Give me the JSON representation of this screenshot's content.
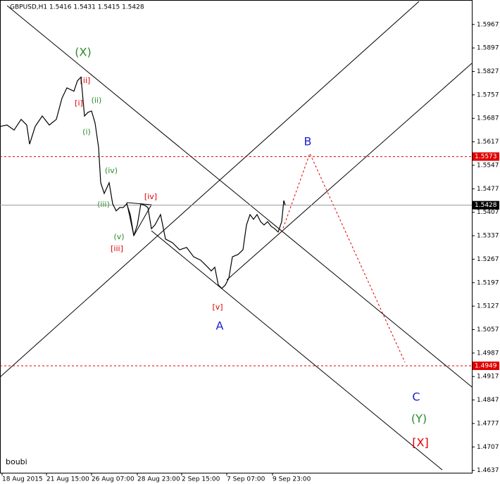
{
  "chart_data": {
    "type": "line",
    "title": "GBPUSD,H1  1.5416 1.5431 1.5415 1.5428",
    "footer": "boubi",
    "x": [
      0,
      10,
      20,
      30,
      38,
      42,
      50,
      60,
      70,
      80,
      88,
      95,
      105,
      110,
      115,
      120,
      125,
      130,
      135,
      140,
      143,
      148,
      155,
      160,
      165,
      170,
      175,
      180,
      185,
      190,
      195,
      200,
      205,
      210,
      215,
      220,
      228,
      235,
      245,
      255,
      265,
      275,
      285,
      295,
      300,
      305,
      310,
      315,
      320,
      325,
      330,
      338,
      345,
      350,
      355,
      360,
      365,
      370,
      375,
      380,
      385,
      390,
      395,
      400,
      403,
      405
    ],
    "series": [
      {
        "name": "GBPUSD",
        "color": "#000000",
        "values": [
          1.5663,
          1.5667,
          1.5652,
          1.5684,
          1.5667,
          1.561,
          1.5663,
          1.5694,
          1.5667,
          1.5684,
          1.5747,
          1.5778,
          1.5768,
          1.5799,
          1.581,
          1.5694,
          1.5705,
          1.5709,
          1.5673,
          1.56,
          1.5495,
          1.5463,
          1.5495,
          1.5432,
          1.5411,
          1.5421,
          1.5421,
          1.5432,
          1.54,
          1.5337,
          1.5369,
          1.5432,
          1.5428,
          1.5421,
          1.5358,
          1.5369,
          1.54,
          1.5327,
          1.5316,
          1.5295,
          1.5302,
          1.5274,
          1.5264,
          1.5243,
          1.5232,
          1.5243,
          1.519,
          1.518,
          1.519,
          1.5211,
          1.5274,
          1.5281,
          1.5295,
          1.5369,
          1.54,
          1.5386,
          1.54,
          1.5379,
          1.5369,
          1.5379,
          1.5365,
          1.5358,
          1.5348,
          1.5379,
          1.5442,
          1.5428
        ]
      }
    ],
    "xlim": [
      0,
      670
    ],
    "xticks": [
      {
        "value": 3,
        "label": "18 Aug 2015"
      },
      {
        "value": 66,
        "label": "21 Aug 15:00"
      },
      {
        "value": 130,
        "label": "26 Aug 07:00"
      },
      {
        "value": 195,
        "label": "28 Aug 23:00"
      },
      {
        "value": 258,
        "label": "2 Sep 15:00"
      },
      {
        "value": 322,
        "label": "7 Sep 07:00"
      },
      {
        "value": 387,
        "label": "9 Sep 23:00"
      }
    ],
    "ylim": [
      1.463,
      1.604
    ],
    "yticks": [
      1.5967,
      1.5897,
      1.5827,
      1.5757,
      1.5687,
      1.5617,
      1.5547,
      1.5477,
      1.5407,
      1.5337,
      1.5267,
      1.5197,
      1.5127,
      1.5057,
      1.4987,
      1.4917,
      1.4847,
      1.4777,
      1.4707,
      1.4637
    ],
    "levels": [
      1.5573,
      1.4949,
      1.5428
    ],
    "level_colors": [
      "#e00000",
      "#e00000",
      "#000000"
    ],
    "annotations": [
      "(X)",
      "[ii]",
      "[i]",
      "(ii)",
      "(i)",
      "(iv)",
      "(iii)",
      "[iv]",
      "(v)",
      "[iii]",
      "[v]",
      "A",
      "B",
      "C",
      "(Y)",
      "[X]"
    ]
  }
}
